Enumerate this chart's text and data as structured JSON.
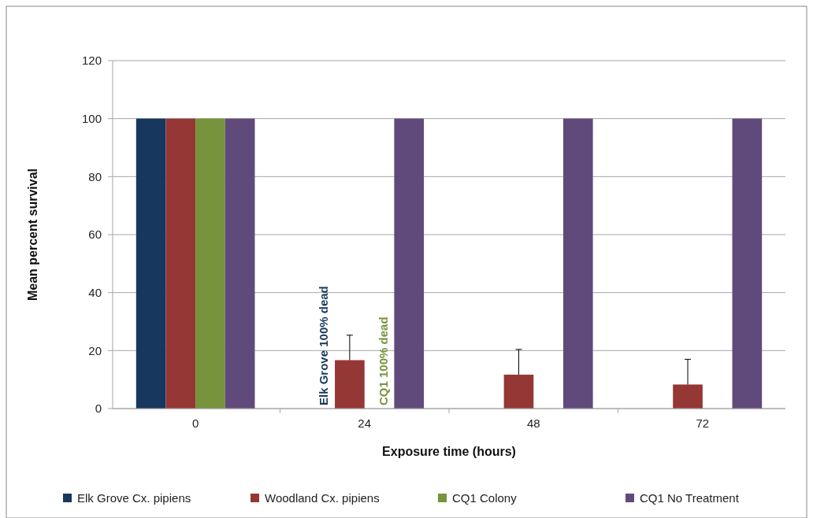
{
  "chart_data": {
    "type": "bar",
    "xlabel": "Exposure time (hours)",
    "ylabel": "Mean percent survival",
    "categories": [
      "0",
      "24",
      "48",
      "72"
    ],
    "series": [
      {
        "name": "Elk Grove Cx. pipiens",
        "color": "#17375e",
        "values": [
          100,
          0,
          0,
          0
        ]
      },
      {
        "name": "Woodland Cx. pipiens",
        "color": "#953735",
        "values": [
          100,
          16.7,
          11.7,
          8.3
        ],
        "errors": [
          null,
          [
            16.7,
            25.3
          ],
          [
            11.7,
            20.4
          ],
          [
            8.3,
            17.0
          ]
        ]
      },
      {
        "name": "CQ1 Colony",
        "color": "#77933c",
        "values": [
          100,
          0,
          0,
          0
        ]
      },
      {
        "name": "CQ1 No Treatment",
        "color": "#604a7b",
        "values": [
          100,
          100,
          100,
          100
        ]
      }
    ],
    "annotations": [
      {
        "text": "Elk Grove 100% dead",
        "x": "24",
        "y": 0
      },
      {
        "text": "CQ1 100% dead",
        "x": "24",
        "y": 0
      }
    ],
    "ylim": [
      0,
      120
    ],
    "yticks": [
      0,
      20,
      40,
      60,
      80,
      100,
      120
    ],
    "grid": "y",
    "legend": "bottom"
  }
}
